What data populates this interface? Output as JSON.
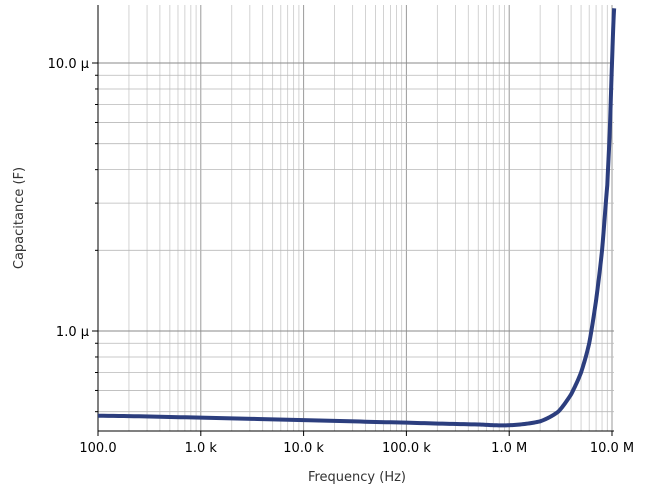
{
  "chart_data": {
    "type": "line",
    "xlabel": "Frequency (Hz)",
    "ylabel": "Capacitance (F)",
    "x_scale": "log",
    "y_scale": "log",
    "xlim": [
      100,
      10000000
    ],
    "ylim": [
      4.4e-07,
      1.6e-05
    ],
    "grid": true,
    "x_ticks": [
      {
        "value": 100,
        "label": "100.0"
      },
      {
        "value": 1000,
        "label": "1.0 k"
      },
      {
        "value": 10000,
        "label": "10.0 k"
      },
      {
        "value": 100000,
        "label": "100.0 k"
      },
      {
        "value": 1000000,
        "label": "1.0 M"
      },
      {
        "value": 10000000,
        "label": "10.0 M"
      }
    ],
    "y_ticks": [
      {
        "value": 1e-06,
        "label": "1.0 µ"
      },
      {
        "value": 1e-05,
        "label": "10.0 µ"
      }
    ],
    "series": [
      {
        "color": "#2c3e7e",
        "x": [
          100,
          1000,
          10000,
          100000,
          500000,
          1000000,
          2000000,
          3000000,
          4000000,
          5000000,
          6000000,
          7000000,
          8000000,
          9000000,
          9500000,
          10000000,
          10500000
        ],
        "y": [
          4.83e-07,
          4.75e-07,
          4.65e-07,
          4.55e-07,
          4.48e-07,
          4.45e-07,
          4.6e-07,
          5e-07,
          5.8e-07,
          7e-07,
          9e-07,
          1.3e-06,
          2e-06,
          3.5e-06,
          5.5e-06,
          1e-05,
          1.6e-05
        ]
      }
    ]
  }
}
